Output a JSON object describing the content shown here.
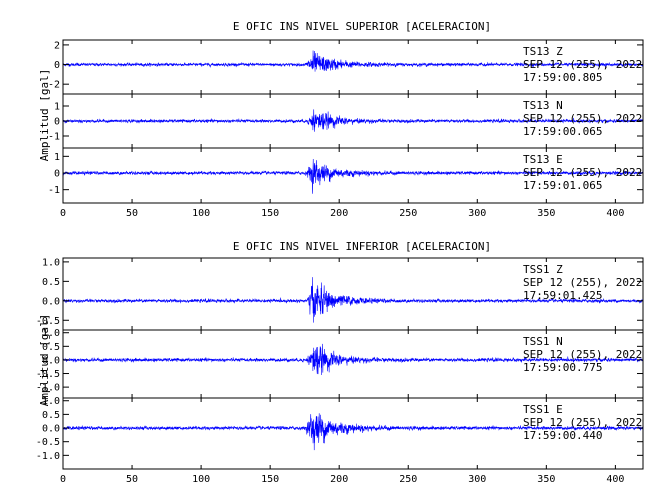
{
  "chart_data": [
    {
      "type": "line",
      "title": "E OFIC INS NIVEL SUPERIOR [ACELERACION]",
      "ylabel": "Amplitud [gal]",
      "xlabel": "",
      "xlim": [
        0,
        420
      ],
      "x_ticks": [
        "0",
        "50",
        "100",
        "150",
        "200",
        "250",
        "300",
        "350",
        "400"
      ],
      "x_tick_values": [
        0,
        50,
        100,
        150,
        200,
        250,
        300,
        350,
        400
      ],
      "line_color": "#0000ff",
      "grid": false,
      "channels": [
        {
          "station": "TS13",
          "component": "Z",
          "date": "SEP 12 (255), 2022",
          "time": "17:59:00.805",
          "ylim": [
            -3,
            2.5
          ],
          "y_ticks": [
            "2",
            "0",
            "-2"
          ],
          "y_tick_values": [
            2,
            0,
            -2
          ],
          "noise_amp": 0.22,
          "event_onset": 175,
          "event_peak": 181,
          "peak_amp": 2.0,
          "decay_end": 230
        },
        {
          "station": "TS13",
          "component": "N",
          "date": "SEP 12 (255), 2022",
          "time": "17:59:00.065",
          "ylim": [
            -1.8,
            1.8
          ],
          "y_ticks": [
            "1",
            "0",
            "-1"
          ],
          "y_tick_values": [
            1,
            0,
            -1
          ],
          "noise_amp": 0.15,
          "event_onset": 176,
          "event_peak": 182,
          "peak_amp": 1.35,
          "decay_end": 225
        },
        {
          "station": "TS13",
          "component": "E",
          "date": "SEP 12 (255), 2022",
          "time": "17:59:01.065",
          "ylim": [
            -1.8,
            1.5
          ],
          "y_ticks": [
            "1",
            "0",
            "-1"
          ],
          "y_tick_values": [
            1,
            0,
            -1
          ],
          "noise_amp": 0.14,
          "event_onset": 175,
          "event_peak": 181,
          "peak_amp": 1.3,
          "decay_end": 230
        }
      ]
    },
    {
      "type": "line",
      "title": "E OFIC INS NIVEL INFERIOR [ACELERACION]",
      "ylabel": "Amplitud [gal]",
      "xlabel": "",
      "xlim": [
        0,
        420
      ],
      "x_ticks": [
        "0",
        "50",
        "100",
        "150",
        "200",
        "250",
        "300",
        "350",
        "400"
      ],
      "x_tick_values": [
        0,
        50,
        100,
        150,
        200,
        250,
        300,
        350,
        400
      ],
      "line_color": "#0000ff",
      "grid": false,
      "channels": [
        {
          "station": "TSS1",
          "component": "Z",
          "date": "SEP 12 (255), 2022",
          "time": "17:59:01.425",
          "ylim": [
            -0.75,
            1.1
          ],
          "y_ticks": [
            "1.0",
            "0.5",
            "0.0",
            "-0.5"
          ],
          "y_tick_values": [
            1.0,
            0.5,
            0.0,
            -0.5
          ],
          "noise_amp": 0.06,
          "event_onset": 176,
          "event_peak": 181,
          "peak_amp": 0.85,
          "decay_end": 225
        },
        {
          "station": "TSS1",
          "component": "N",
          "date": "SEP 12 (255), 2022",
          "time": "17:59:00.775",
          "ylim": [
            -1.4,
            1.1
          ],
          "y_ticks": [
            "1.0",
            "0.5",
            "0.0",
            "-0.5",
            "-1.0"
          ],
          "y_tick_values": [
            1.0,
            0.5,
            0.0,
            -0.5,
            -1.0
          ],
          "noise_amp": 0.09,
          "event_onset": 176,
          "event_peak": 181,
          "peak_amp": 1.05,
          "decay_end": 225
        },
        {
          "station": "TSS1",
          "component": "E",
          "date": "SEP 12 (255), 2022",
          "time": "17:59:00.440",
          "ylim": [
            -1.5,
            1.1
          ],
          "y_ticks": [
            "1.0",
            "0.5",
            "0.0",
            "-0.5",
            "-1.0"
          ],
          "y_tick_values": [
            1.0,
            0.5,
            0.0,
            -0.5,
            -1.0
          ],
          "noise_amp": 0.09,
          "event_onset": 175,
          "event_peak": 181,
          "peak_amp": 1.15,
          "decay_end": 230
        }
      ]
    }
  ]
}
